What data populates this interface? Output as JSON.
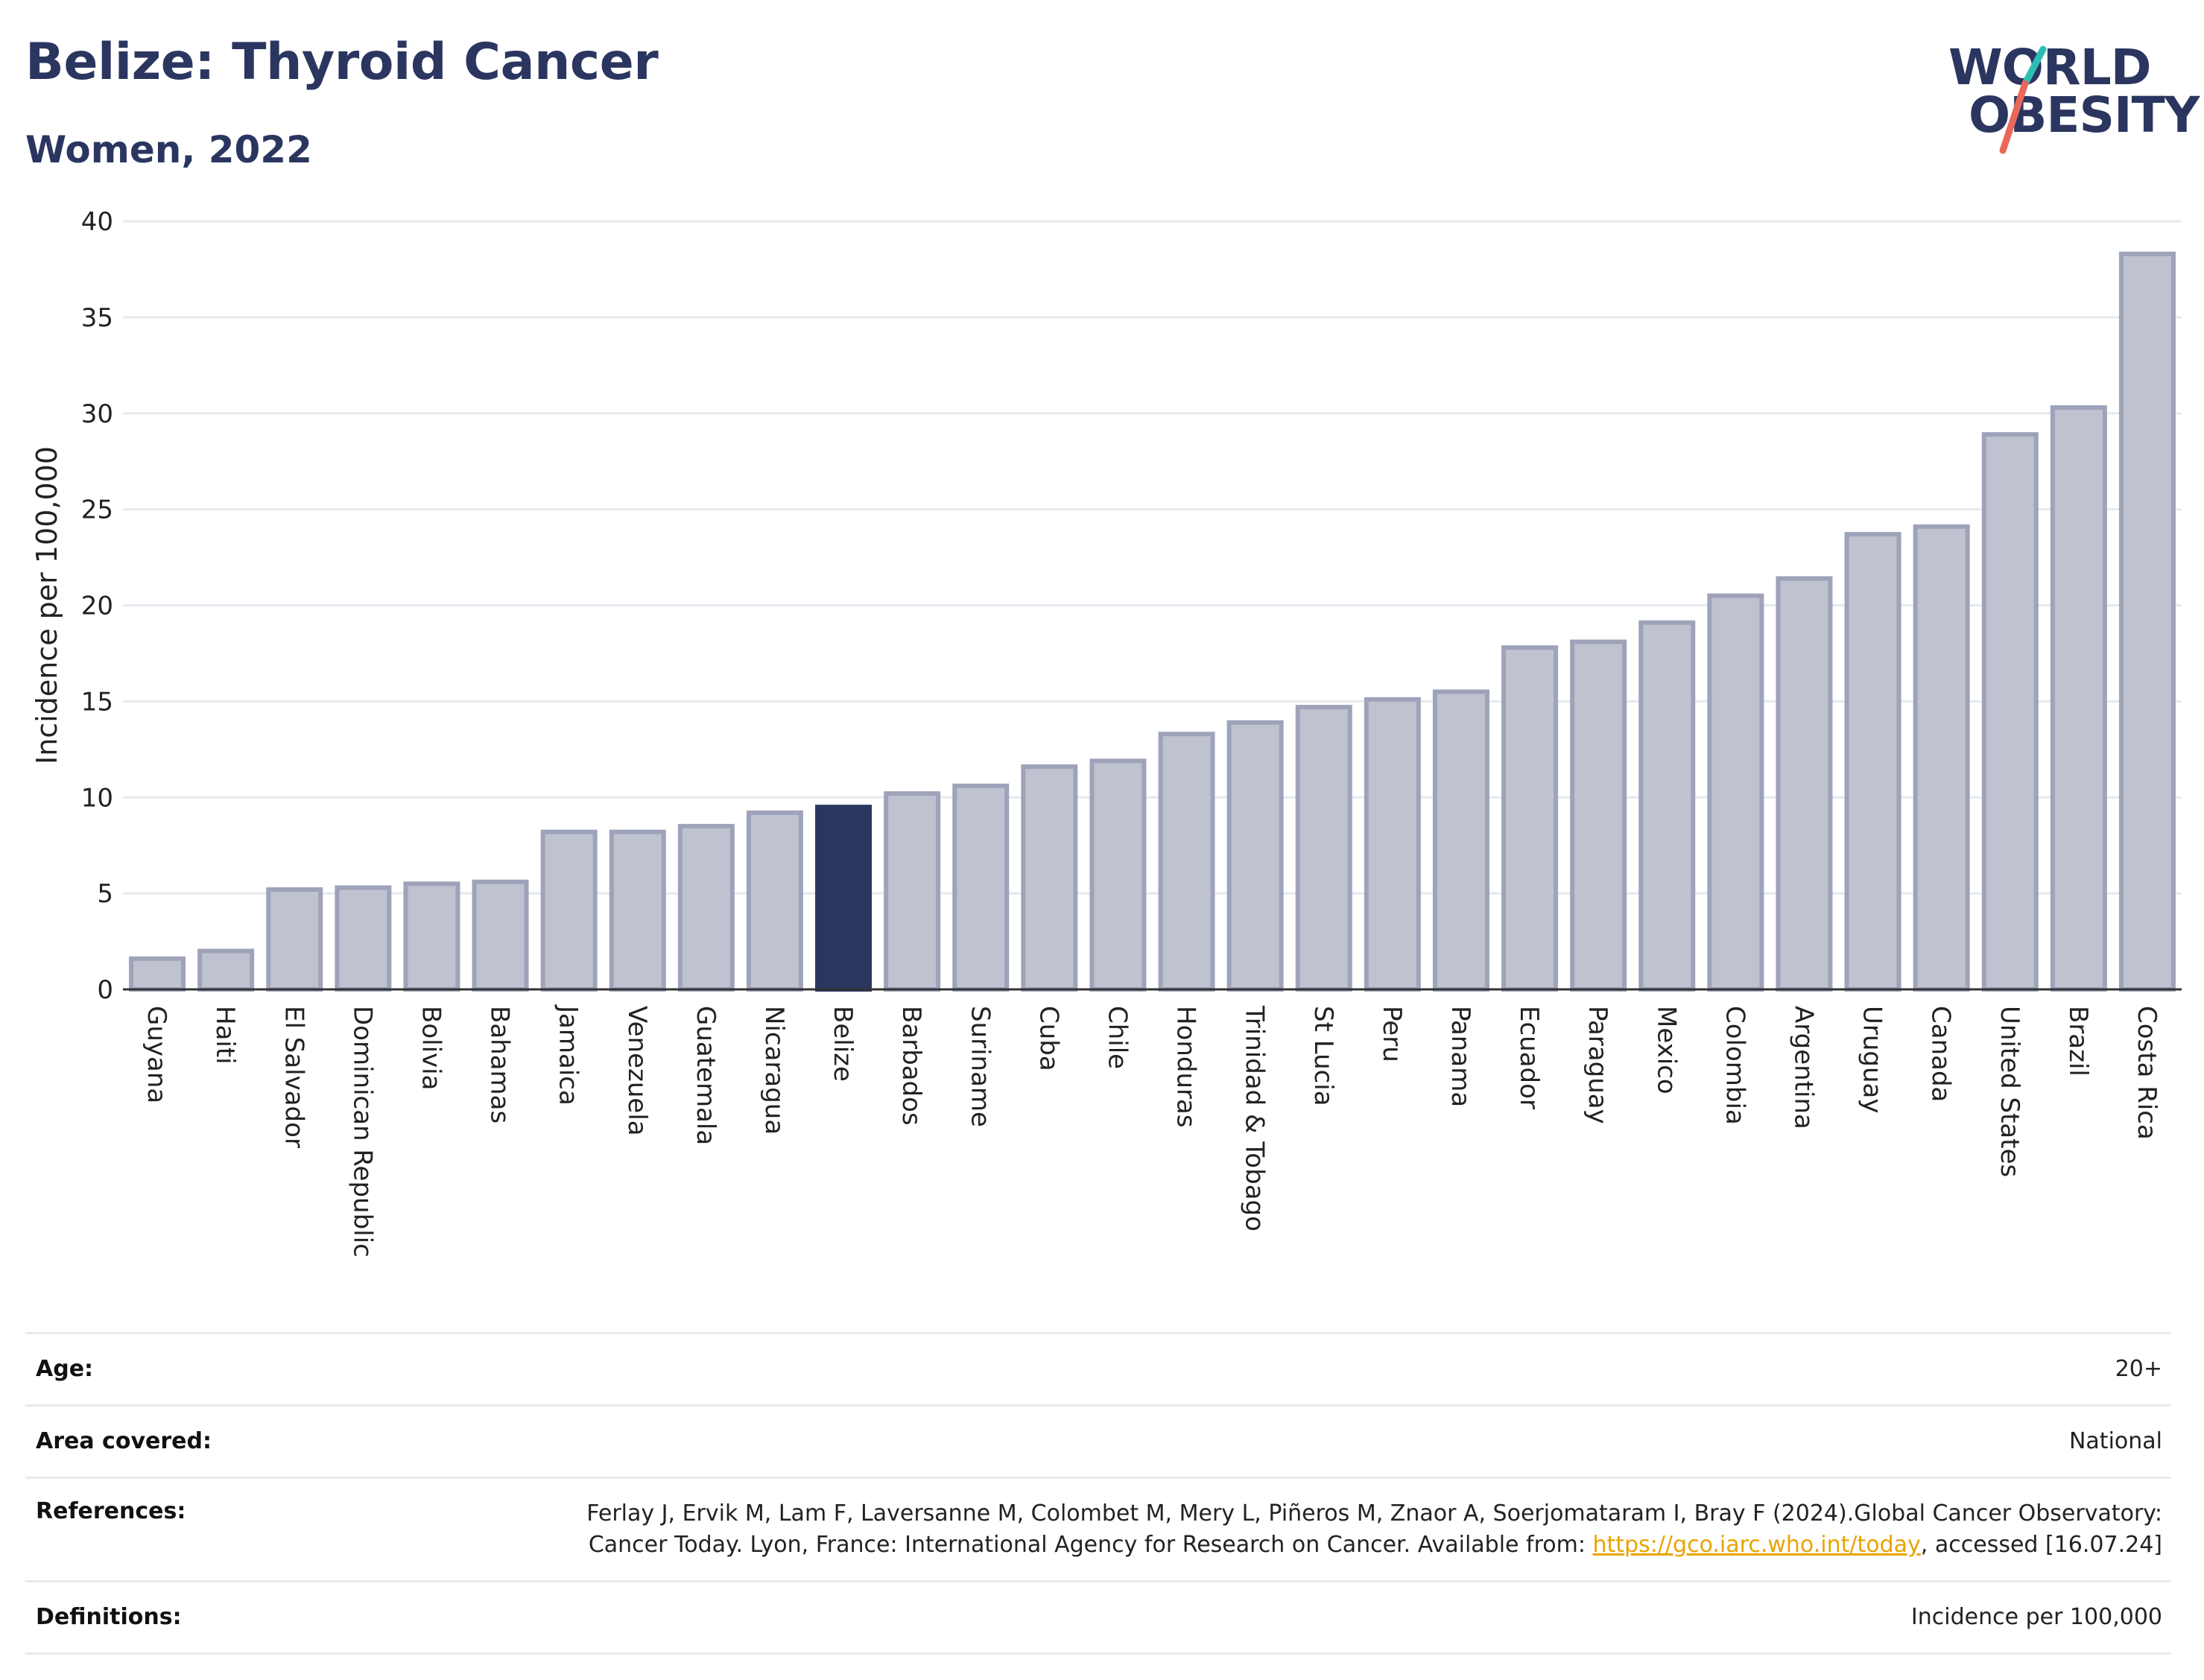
{
  "header": {
    "title": "Belize: Thyroid Cancer",
    "subtitle": "Women, 2022"
  },
  "logo": {
    "line1": "WORLD",
    "line2": "OBESITY",
    "colors": {
      "text": "#2b3660",
      "slash_top": "#2bbfb3",
      "slash_bottom": "#e8685a"
    }
  },
  "colors": {
    "bar": "#bfc2cf",
    "bar_stroke": "#9ea3ba",
    "highlight": "#2b3660",
    "grid": "#e6e8ee",
    "axis": "#333333"
  },
  "chart_data": {
    "type": "bar",
    "ylabel": "Incidence per 100,000",
    "xlabel": "",
    "ylim": [
      0,
      40
    ],
    "yticks": [
      0,
      5,
      10,
      15,
      20,
      25,
      30,
      35,
      40
    ],
    "grid": true,
    "highlight": "Belize",
    "categories": [
      "Guyana",
      "Haiti",
      "El Salvador",
      "Dominican Republic",
      "Bolivia",
      "Bahamas",
      "Jamaica",
      "Venezuela",
      "Guatemala",
      "Nicaragua",
      "Belize",
      "Barbados",
      "Suriname",
      "Cuba",
      "Chile",
      "Honduras",
      "Trinidad & Tobago",
      "St Lucia",
      "Peru",
      "Panama",
      "Ecuador",
      "Paraguay",
      "Mexico",
      "Colombia",
      "Argentina",
      "Uruguay",
      "Canada",
      "United States",
      "Brazil",
      "Costa Rica"
    ],
    "values": [
      1.6,
      2.0,
      5.2,
      5.3,
      5.5,
      5.6,
      8.2,
      8.2,
      8.5,
      9.2,
      9.5,
      10.2,
      10.6,
      11.6,
      11.9,
      13.3,
      13.9,
      14.7,
      15.1,
      15.5,
      17.8,
      18.1,
      19.1,
      20.5,
      21.4,
      23.7,
      24.1,
      28.9,
      30.3,
      38.3
    ]
  },
  "meta": {
    "age_label": "Age:",
    "age_value": "20+",
    "area_label": "Area covered:",
    "area_value": "National",
    "references_label": "References:",
    "references_text_1": "Ferlay J, Ervik M, Lam F, Laversanne M, Colombet M, Mery L, Piñeros M, Znaor A, Soerjomataram I, Bray F (2024).Global Cancer Observatory: Cancer Today. Lyon, France: International Agency for Research on Cancer. Available from: ",
    "references_link": "https://gco.iarc.who.int/today",
    "references_text_2": ", accessed [16.07.24]",
    "definitions_label": "Definitions:",
    "definitions_value": "Incidence per 100,000"
  }
}
